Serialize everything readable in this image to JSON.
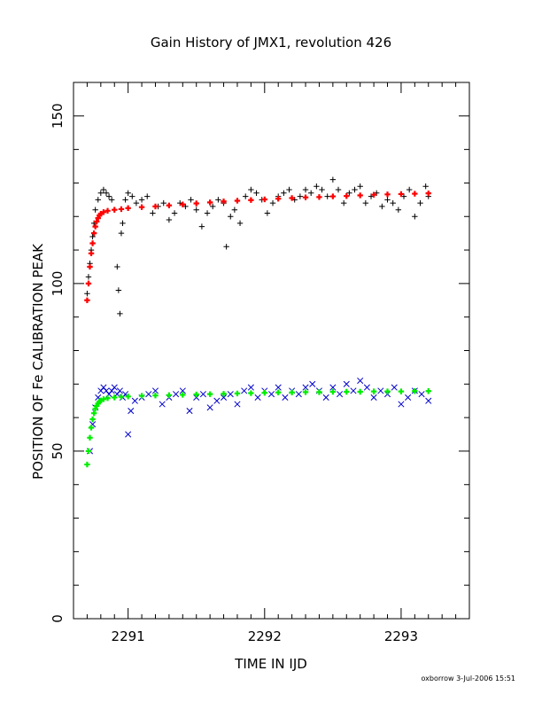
{
  "chart_data": {
    "type": "scatter",
    "title": "Gain History of JMX1, revolution 426",
    "xlabel": "TIME IN IJD",
    "ylabel": "POSITION OF Fe CALIBRATION PEAK",
    "footer": "oxborrow   3-Jul-2006 15:51",
    "xlim": [
      2290.6,
      2293.5
    ],
    "ylim": [
      0,
      160
    ],
    "x_ticks": [
      2291,
      2292,
      2293
    ],
    "x_tick_labels": [
      "2291",
      "2292",
      "2293"
    ],
    "y_ticks": [
      0,
      50,
      100,
      150
    ],
    "y_tick_labels": [
      "0",
      "50",
      "100",
      "150"
    ],
    "grid": false,
    "legend": "none",
    "series": [
      {
        "marker": "plus",
        "color": "#000000",
        "x": [
          2290.7,
          2290.71,
          2290.72,
          2290.73,
          2290.74,
          2290.75,
          2290.76,
          2290.78,
          2290.8,
          2290.82,
          2290.84,
          2290.86,
          2290.88,
          2290.9,
          2290.92,
          2290.93,
          2290.94,
          2290.95,
          2290.96,
          2290.98,
          2291.0,
          2291.03,
          2291.06,
          2291.1,
          2291.14,
          2291.18,
          2291.22,
          2291.26,
          2291.3,
          2291.34,
          2291.38,
          2291.42,
          2291.46,
          2291.5,
          2291.54,
          2291.58,
          2291.62,
          2291.66,
          2291.7,
          2291.72,
          2291.75,
          2291.78,
          2291.82,
          2291.86,
          2291.9,
          2291.94,
          2291.98,
          2292.02,
          2292.06,
          2292.1,
          2292.14,
          2292.18,
          2292.22,
          2292.26,
          2292.3,
          2292.34,
          2292.38,
          2292.42,
          2292.46,
          2292.5,
          2292.54,
          2292.58,
          2292.62,
          2292.66,
          2292.7,
          2292.74,
          2292.78,
          2292.82,
          2292.86,
          2292.9,
          2292.94,
          2292.98,
          2293.02,
          2293.06,
          2293.1,
          2293.14,
          2293.18,
          2293.2
        ],
        "y": [
          97,
          102,
          106,
          110,
          114,
          118,
          122,
          125,
          127,
          128,
          127,
          126,
          125,
          122,
          105,
          98,
          91,
          115,
          118,
          125,
          127,
          126,
          124,
          125,
          126,
          121,
          123,
          124,
          119,
          121,
          124,
          123,
          125,
          122,
          117,
          121,
          123,
          125,
          124,
          111,
          120,
          122,
          118,
          126,
          128,
          127,
          125,
          121,
          124,
          126,
          127,
          128,
          125,
          126,
          128,
          127,
          129,
          128,
          126,
          131,
          128,
          124,
          127,
          128,
          129,
          124,
          126,
          127,
          123,
          125,
          124,
          122,
          126,
          128,
          120,
          124,
          129,
          126
        ]
      },
      {
        "marker": "plus",
        "color": "#ff0000",
        "x": [
          2290.7,
          2290.71,
          2290.72,
          2290.73,
          2290.74,
          2290.75,
          2290.76,
          2290.77,
          2290.78,
          2290.79,
          2290.8,
          2290.82,
          2290.85,
          2290.9,
          2290.95,
          2291.0,
          2291.1,
          2291.2,
          2291.3,
          2291.4,
          2291.5,
          2291.6,
          2291.7,
          2291.8,
          2291.9,
          2292.0,
          2292.1,
          2292.2,
          2292.3,
          2292.4,
          2292.5,
          2292.6,
          2292.7,
          2292.8,
          2292.9,
          2293.0,
          2293.1,
          2293.2
        ],
        "y": [
          95,
          100,
          105,
          109,
          112,
          115,
          117,
          118.5,
          119.5,
          120.3,
          120.8,
          121.3,
          121.7,
          122,
          122.2,
          122.5,
          122.8,
          123,
          123.3,
          123.6,
          123.9,
          124.2,
          124.5,
          124.7,
          124.9,
          125.1,
          125.3,
          125.5,
          125.7,
          125.8,
          126,
          126.1,
          126.3,
          126.5,
          126.6,
          126.7,
          126.8,
          126.9
        ]
      },
      {
        "marker": "cross",
        "color": "#0000cc",
        "x": [
          2290.72,
          2290.74,
          2290.76,
          2290.78,
          2290.8,
          2290.82,
          2290.84,
          2290.86,
          2290.88,
          2290.9,
          2290.92,
          2290.94,
          2290.96,
          2290.98,
          2291.0,
          2291.02,
          2291.05,
          2291.1,
          2291.15,
          2291.2,
          2291.25,
          2291.3,
          2291.35,
          2291.4,
          2291.45,
          2291.5,
          2291.55,
          2291.6,
          2291.65,
          2291.7,
          2291.75,
          2291.8,
          2291.85,
          2291.9,
          2291.95,
          2292.0,
          2292.05,
          2292.1,
          2292.15,
          2292.2,
          2292.25,
          2292.3,
          2292.35,
          2292.4,
          2292.45,
          2292.5,
          2292.55,
          2292.6,
          2292.65,
          2292.7,
          2292.75,
          2292.8,
          2292.85,
          2292.9,
          2292.95,
          2293.0,
          2293.05,
          2293.1,
          2293.15,
          2293.2
        ],
        "y": [
          50,
          58,
          63,
          66,
          68,
          69,
          68,
          67,
          68,
          69,
          67,
          68,
          66,
          67,
          55,
          62,
          65,
          66,
          67,
          68,
          64,
          66,
          67,
          68,
          62,
          66,
          67,
          63,
          65,
          66,
          67,
          64,
          68,
          69,
          66,
          68,
          67,
          69,
          66,
          68,
          67,
          69,
          70,
          68,
          66,
          69,
          67,
          70,
          68,
          71,
          69,
          66,
          68,
          67,
          69,
          64,
          66,
          68,
          67,
          65
        ]
      },
      {
        "marker": "plus",
        "color": "#00ee00",
        "x": [
          2290.7,
          2290.71,
          2290.72,
          2290.73,
          2290.74,
          2290.75,
          2290.76,
          2290.77,
          2290.78,
          2290.79,
          2290.8,
          2290.82,
          2290.85,
          2290.9,
          2290.95,
          2291.0,
          2291.1,
          2291.2,
          2291.3,
          2291.4,
          2291.5,
          2291.6,
          2291.7,
          2291.8,
          2291.9,
          2292.0,
          2292.1,
          2292.2,
          2292.3,
          2292.4,
          2292.5,
          2292.6,
          2292.7,
          2292.8,
          2292.9,
          2293.0,
          2293.1,
          2293.2
        ],
        "y": [
          46,
          50,
          54,
          57,
          59.5,
          61.3,
          62.6,
          63.5,
          64.2,
          64.7,
          65.1,
          65.5,
          65.8,
          66,
          66.2,
          66.3,
          66.5,
          66.6,
          66.7,
          66.8,
          66.9,
          67,
          67.1,
          67.2,
          67.3,
          67.4,
          67.5,
          67.5,
          67.6,
          67.6,
          67.7,
          67.7,
          67.7,
          67.8,
          67.8,
          67.8,
          67.9,
          67.9
        ]
      }
    ]
  }
}
